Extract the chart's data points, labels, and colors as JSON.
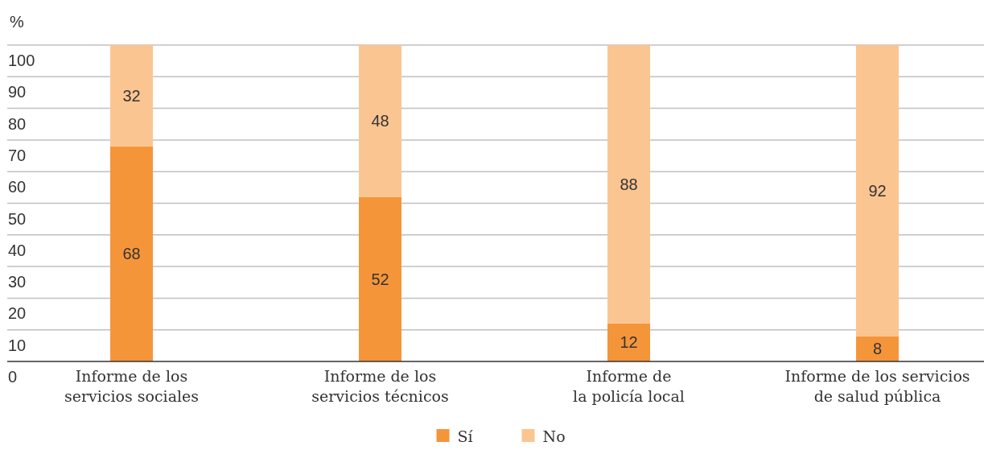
{
  "chart_data": {
    "type": "bar",
    "stacked": true,
    "ylabel": "%",
    "categories": [
      "Informe de los\nservicios sociales",
      "Informe de los\nservicios técnicos",
      "Informe de\nla policía local",
      "Informe de los servicios\nde salud pública"
    ],
    "series": [
      {
        "name": "Sí",
        "color": "#f5953a",
        "values": [
          68,
          52,
          12,
          8
        ]
      },
      {
        "name": "No",
        "color": "#fbc591",
        "values": [
          32,
          48,
          88,
          92
        ]
      }
    ],
    "ylim": [
      0,
      100
    ],
    "yticks": [
      0,
      10,
      20,
      30,
      40,
      50,
      60,
      70,
      80,
      90,
      100
    ],
    "grid": "y",
    "legend": "bottom",
    "data_labels": true
  }
}
